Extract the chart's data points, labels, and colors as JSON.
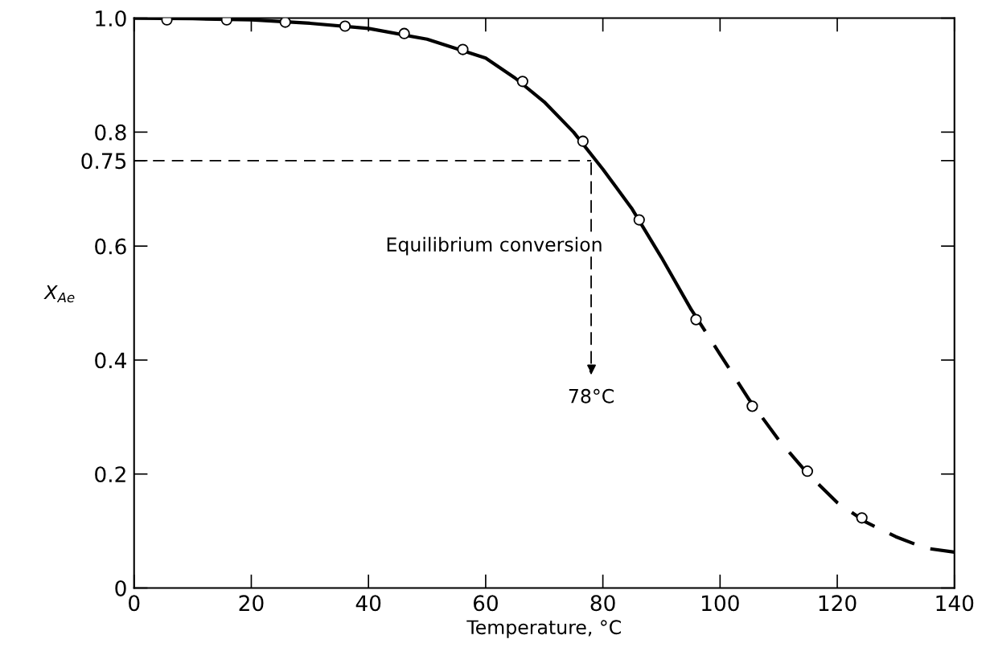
{
  "chart_data": {
    "type": "scatter",
    "xlabel": "Temperature, °C",
    "ylabel": "X$_{Ae}$",
    "xlim": [
      0,
      140
    ],
    "xticks": [
      0,
      20,
      40,
      60,
      80,
      100,
      120,
      140
    ],
    "ylim": [
      0,
      1.0
    ],
    "yticks": [
      {
        "value": 0,
        "label": "0"
      },
      0.2,
      0.4,
      0.6,
      {
        "value": 0.75,
        "label": "0.75"
      },
      0.8,
      {
        "value": 1.0,
        "label": "1.0"
      }
    ],
    "grid": false,
    "legend": false,
    "series": [
      {
        "color": "#000000",
        "marker": "circle",
        "x": [
          5.6,
          15.8,
          25.8,
          36,
          46.1,
          56.1,
          66.3,
          76.6,
          86.2,
          95.9,
          105.5,
          114.9,
          124.2
        ],
        "values": [
          0.997,
          0.997,
          0.993,
          0.986,
          0.973,
          0.945,
          0.889,
          0.784,
          0.646,
          0.471,
          0.319,
          0.205,
          0.123
        ]
      },
      {
        "type": "line",
        "color": "#000000",
        "line_style": "solid",
        "x": [
          0,
          10,
          20,
          30,
          40,
          50,
          60,
          65,
          70,
          75,
          80,
          85,
          90,
          95
        ],
        "values": [
          1.0,
          0.999,
          0.997,
          0.991,
          0.982,
          0.963,
          0.93,
          0.895,
          0.853,
          0.8,
          0.735,
          0.665,
          0.58,
          0.49
        ]
      },
      {
        "type": "line",
        "color": "#000000",
        "line_style": "dashed",
        "x": [
          95,
          100,
          105,
          110,
          115,
          120,
          125,
          130,
          135,
          140
        ],
        "values": [
          0.49,
          0.41,
          0.33,
          0.26,
          0.2,
          0.15,
          0.115,
          0.09,
          0.07,
          0.063
        ]
      },
      {
        "type": "line",
        "color": "#000000",
        "line_style": "dashed",
        "x": [
          0,
          78
        ],
        "values": [
          0.75,
          0.75
        ]
      }
    ],
    "annotations": [
      "Equilibrium conversion",
      "78°C"
    ]
  }
}
